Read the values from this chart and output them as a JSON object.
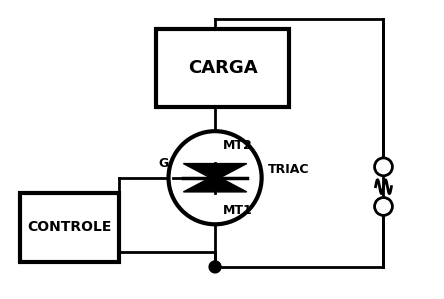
{
  "bg_color": "#ffffff",
  "line_color": "#000000",
  "lw": 2.0,
  "mt2_label": "MT2",
  "mt1_label": "MT1",
  "g_label": "G",
  "triac_label": "TRIAC",
  "carga_label": "CARGA",
  "controle_label": "CONTROLE",
  "figsize": [
    4.44,
    2.99
  ],
  "dpi": 100
}
